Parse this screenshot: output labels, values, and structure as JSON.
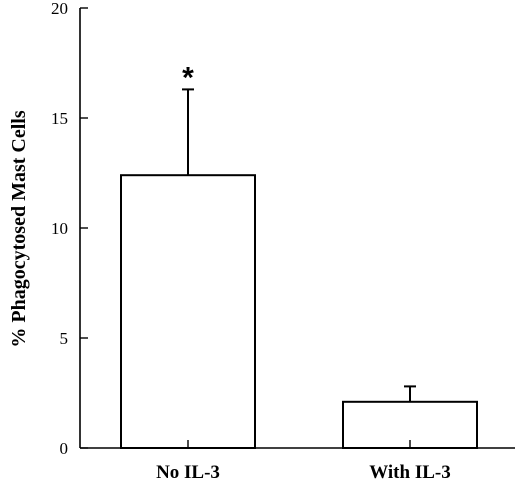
{
  "chart_data": {
    "type": "bar",
    "title": "",
    "xlabel": "",
    "ylabel": "% Phagocytosed Mast Cells",
    "ylim": [
      0,
      20
    ],
    "yticks": [
      0,
      5,
      10,
      15,
      20
    ],
    "categories": [
      "No IL-3",
      "With IL-3"
    ],
    "series": [
      {
        "values": [
          12.4,
          2.1
        ],
        "error_upper": [
          3.9,
          0.7
        ]
      }
    ],
    "annotations": [
      {
        "category": "No IL-3",
        "text": "*"
      }
    ],
    "grid": false,
    "legend": "none",
    "colors": {
      "bar_fill": "#ffffff",
      "bar_stroke": "#000000",
      "axis": "#000000"
    }
  }
}
